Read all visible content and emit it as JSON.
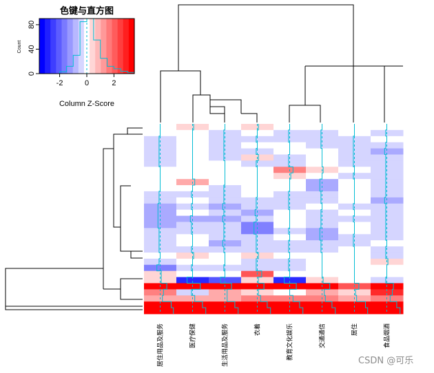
{
  "chart_data": {
    "type": "heatmap",
    "title": "色键与直方图",
    "colorkey": {
      "xlabel": "Column Z-Score",
      "ylabel": "Count",
      "xticks": [
        "-2",
        "0",
        "2"
      ],
      "xtick_values": [
        -2,
        0,
        2
      ],
      "yticks": [
        "0",
        "40",
        "80"
      ],
      "ytick_values": [
        0,
        40,
        80
      ],
      "xlim": [
        -3.5,
        3.5
      ],
      "ylim": [
        0,
        90
      ],
      "colors": [
        "#0000ff",
        "#1f1fff",
        "#3e3eff",
        "#5c5cff",
        "#7a7aff",
        "#9999ff",
        "#b8b8ff",
        "#d6d6ff",
        "#ffffff",
        "#ffd6d6",
        "#ffb8b8",
        "#ff9999",
        "#ff7a7a",
        "#ff5c5c",
        "#ff3e3e",
        "#ff1f1f",
        "#ff0000"
      ],
      "hist_x": [
        -3.5,
        -3.0,
        -2.5,
        -2.0,
        -1.5,
        -1.0,
        -0.5,
        0,
        0.5,
        1.0,
        1.5,
        2.0,
        2.5,
        3.0,
        3.5
      ],
      "hist_y": [
        0,
        0,
        0,
        3,
        12,
        30,
        85,
        90,
        55,
        25,
        12,
        8,
        4,
        2
      ]
    },
    "columns": [
      "居住用品及服务",
      "医疗保健",
      "生活用品及服务",
      "衣着",
      "教育文化娱乐",
      "交通通信",
      "居住",
      "食品烟酒"
    ],
    "row_count": 31,
    "values": [
      [
        0,
        1,
        0,
        1,
        0,
        0,
        0,
        0
      ],
      [
        0,
        0,
        -1,
        0,
        -1,
        -1,
        0,
        -1
      ],
      [
        -1,
        0,
        -1,
        -1,
        -1,
        -1,
        -1,
        0
      ],
      [
        -1,
        0,
        -1,
        0,
        0,
        -1,
        -1,
        -1
      ],
      [
        -1,
        0,
        -1,
        -1,
        0,
        0,
        -1,
        -2
      ],
      [
        -1,
        0,
        -1,
        1,
        -1,
        0,
        -1,
        -1
      ],
      [
        -1,
        0,
        0,
        -1,
        -1,
        0,
        -1,
        -1
      ],
      [
        0,
        0,
        0,
        0,
        3,
        1,
        0,
        -1
      ],
      [
        0,
        0,
        0,
        0,
        1,
        0,
        -1,
        -1
      ],
      [
        0,
        2,
        0,
        0,
        0,
        -2,
        0,
        -1
      ],
      [
        0,
        0,
        -1,
        0,
        0,
        -2,
        0,
        -1
      ],
      [
        -1,
        -1,
        -1,
        0,
        -1,
        -1,
        0,
        -1
      ],
      [
        -1,
        0,
        -1,
        -1,
        -1,
        -1,
        0,
        -2
      ],
      [
        -2,
        -1,
        -2,
        -1,
        -1,
        0,
        -1,
        -1
      ],
      [
        -2,
        0,
        -1,
        -2,
        0,
        -1,
        0,
        -1
      ],
      [
        -2,
        -2,
        -2,
        -1,
        0,
        -1,
        -1,
        -1
      ],
      [
        -2,
        -1,
        -1,
        -3,
        0,
        -1,
        0,
        -1
      ],
      [
        -1,
        -1,
        -1,
        -3,
        -1,
        -2,
        0,
        -1
      ],
      [
        -1,
        0,
        -1,
        -1,
        0,
        -2,
        -1,
        -1
      ],
      [
        -1,
        0,
        -2,
        -1,
        -1,
        -1,
        -1,
        0
      ],
      [
        -1,
        -1,
        -1,
        -1,
        -1,
        -1,
        0,
        -1
      ],
      [
        0,
        1,
        0,
        1,
        0,
        0,
        0,
        -1
      ],
      [
        -1,
        0,
        0,
        -1,
        -1,
        0,
        0,
        1
      ],
      [
        -3,
        -1,
        -1,
        -1,
        -1,
        0,
        0,
        0
      ],
      [
        1,
        0,
        0,
        4,
        0,
        0,
        0,
        0
      ],
      [
        1,
        -5,
        -4,
        1,
        -5,
        1,
        0,
        -1
      ],
      [
        6,
        7,
        6,
        6,
        6,
        7,
        4,
        6
      ],
      [
        3,
        -1,
        2,
        1,
        0,
        2,
        1,
        5
      ],
      [
        2,
        2,
        2,
        3,
        3,
        3,
        2,
        3
      ],
      [
        10,
        9,
        9,
        9,
        9,
        9,
        10,
        9
      ],
      [
        12,
        12,
        12,
        12,
        12,
        12,
        12,
        12
      ]
    ]
  },
  "watermark": "CSDN @可乐"
}
